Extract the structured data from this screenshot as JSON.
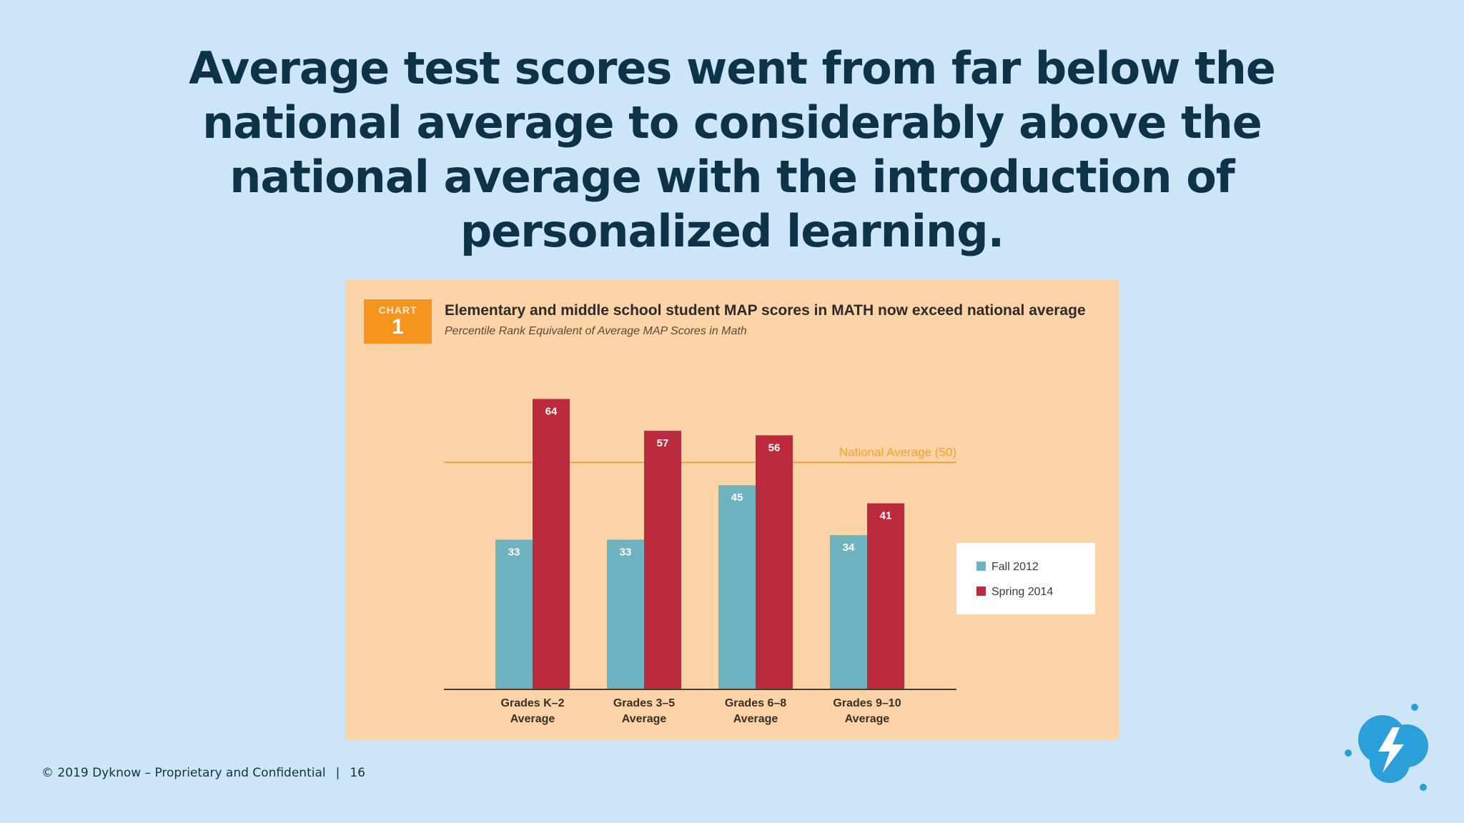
{
  "slide": {
    "title": "Average test scores went from far below the national average to considerably above the national average with the introduction of personalized learning.",
    "footer_text": "© 2019 Dyknow – Proprietary and Confidential",
    "footer_separator": "|",
    "page_number": "16"
  },
  "chart_badge": {
    "word": "CHART",
    "number": "1"
  },
  "chart_data": {
    "type": "bar",
    "title": "Elementary and middle school student MAP scores in MATH now exceed national average",
    "subtitle": "Percentile Rank Equivalent of Average MAP Scores in Math",
    "categories": [
      [
        "Grades K–2",
        "Average"
      ],
      [
        "Grades 3–5",
        "Average"
      ],
      [
        "Grades 6–8",
        "Average"
      ],
      [
        "Grades 9–10",
        "Average"
      ]
    ],
    "series": [
      {
        "name": "Fall 2012",
        "values": [
          33,
          33,
          45,
          34
        ],
        "color": "#6fb2c0"
      },
      {
        "name": "Spring 2014",
        "values": [
          64,
          57,
          56,
          41
        ],
        "color": "#bc2a3e"
      }
    ],
    "reference_line": {
      "label": "National Average (50)",
      "value": 50,
      "color": "#f2a227"
    },
    "ylim": [
      0,
      71
    ],
    "grid": false,
    "legend_position": "right"
  },
  "colors": {
    "background": "#cde6f7",
    "title": "#0d3349",
    "panel": "#fdd3a8",
    "logo": "#2a9fd8"
  }
}
